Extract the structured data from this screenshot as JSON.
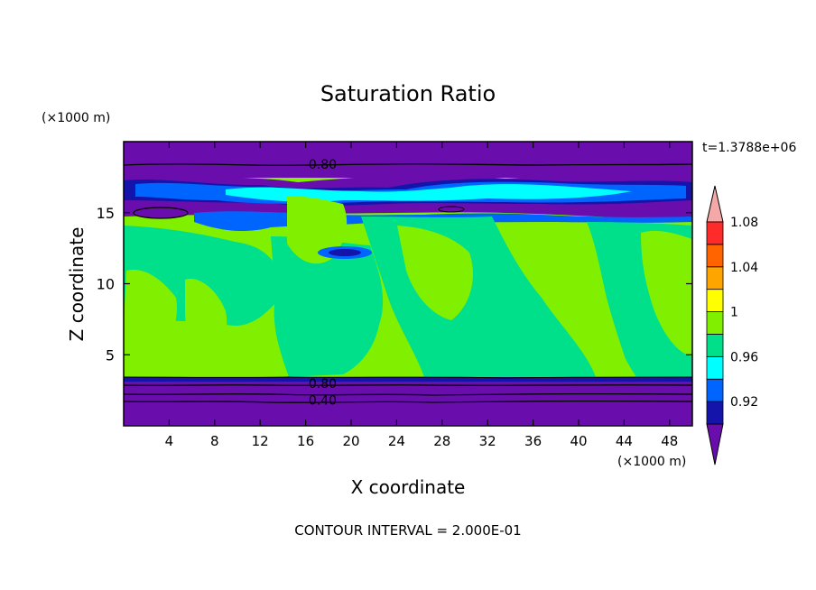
{
  "chart_data": {
    "type": "contour",
    "title": "Saturation Ratio",
    "xlabel": "X coordinate",
    "ylabel": "Z coordinate",
    "x_unit": "(×1000 m)",
    "y_unit": "(×1000 m)",
    "time_label": "t=1.3788e+06",
    "footer": "CONTOUR INTERVAL = 2.000E-01",
    "xlim": [
      0,
      50
    ],
    "ylim": [
      0,
      20
    ],
    "x_ticks": [
      4,
      8,
      12,
      16,
      20,
      24,
      28,
      32,
      36,
      40,
      44,
      48
    ],
    "y_ticks": [
      5,
      10,
      15
    ],
    "contour_labels": [
      {
        "text": "0.80",
        "x": 17.5,
        "z": 18.4
      },
      {
        "text": "0.80",
        "x": 17.5,
        "z": 3.0
      },
      {
        "text": "0.40",
        "x": 17.5,
        "z": 1.8
      }
    ],
    "colorbar": {
      "colors": [
        "#6a0dad",
        "#1414aa",
        "#0064ff",
        "#00ffff",
        "#00e08a",
        "#80f000",
        "#ffff00",
        "#ffa500",
        "#ff6400",
        "#ff2a2a",
        "#f4a8a8"
      ],
      "labels": [
        "0.92",
        "0.96",
        "1",
        "1.04",
        "1.08"
      ]
    }
  }
}
